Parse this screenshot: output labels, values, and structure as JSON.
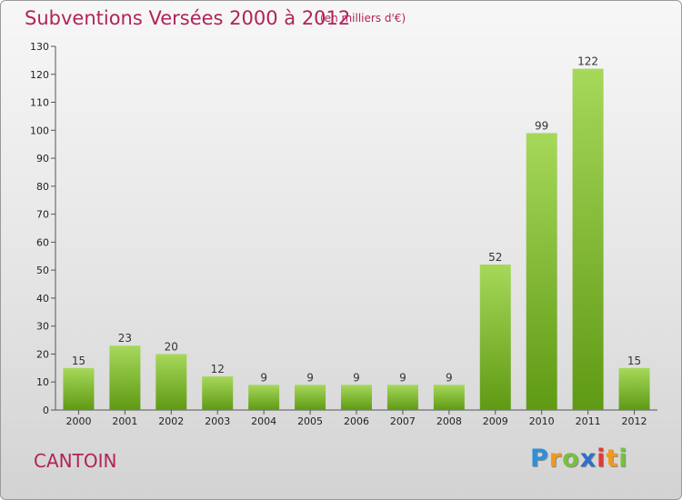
{
  "title": "Subventions Versées 2000 à 2012",
  "unit": "(en milliers d'€)",
  "commune": "CANTOIN",
  "logo": {
    "p": "P",
    "r": "r",
    "o": "o",
    "x": "x",
    "i1": "i",
    "t": "t",
    "i2": "i"
  },
  "colors": {
    "title": "#b0245a",
    "bar_light": "#a6d85a",
    "bar_dark": "#5f9a14"
  },
  "chart_data": {
    "type": "bar",
    "title": "Subventions Versées 2000 à 2012",
    "ylabel": "(en milliers d'€)",
    "categories": [
      "2000",
      "2001",
      "2002",
      "2003",
      "2004",
      "2005",
      "2006",
      "2007",
      "2008",
      "2009",
      "2010",
      "2011",
      "2012"
    ],
    "values": [
      15,
      23,
      20,
      12,
      9,
      9,
      9,
      9,
      9,
      52,
      99,
      122,
      15
    ],
    "ylim": [
      0,
      130
    ],
    "yticks": [
      0,
      10,
      20,
      30,
      40,
      50,
      60,
      70,
      80,
      90,
      100,
      110,
      120,
      130
    ],
    "grid": false,
    "legend": "none"
  }
}
